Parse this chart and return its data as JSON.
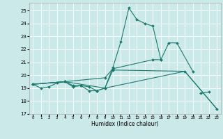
{
  "xlabel": "Humidex (Indice chaleur)",
  "bg_color": "#cce9e9",
  "grid_color": "#ffffff",
  "line_color": "#1a7a6e",
  "xlim": [
    -0.5,
    23.5
  ],
  "ylim": [
    17,
    25.6
  ],
  "yticks": [
    17,
    18,
    19,
    20,
    21,
    22,
    23,
    24,
    25
  ],
  "xticks": [
    0,
    1,
    2,
    3,
    4,
    5,
    6,
    7,
    8,
    9,
    10,
    11,
    12,
    13,
    14,
    15,
    16,
    17,
    18,
    19,
    20,
    21,
    22,
    23
  ],
  "lines": [
    {
      "x": [
        0,
        1,
        2,
        3,
        4,
        5,
        6,
        7,
        8,
        9,
        10,
        11,
        12,
        13,
        14,
        15,
        16,
        17,
        18,
        19,
        20,
        21,
        22,
        23
      ],
      "y": [
        19.3,
        19.0,
        19.1,
        19.4,
        19.5,
        19.1,
        19.2,
        18.8,
        18.8,
        19.0,
        20.6,
        22.6,
        25.2,
        24.3,
        24.0,
        23.8,
        21.2,
        null,
        null,
        null,
        null,
        18.6,
        18.7,
        null
      ],
      "marker": true
    },
    {
      "x": [
        0,
        4,
        9,
        10,
        15,
        16,
        17,
        18,
        20
      ],
      "y": [
        19.3,
        19.5,
        19.8,
        20.5,
        21.2,
        21.2,
        22.5,
        22.5,
        20.3
      ],
      "marker": true
    },
    {
      "x": [
        0,
        4,
        9,
        19,
        23
      ],
      "y": [
        19.3,
        19.5,
        19.0,
        20.3,
        17.4
      ],
      "marker": false
    },
    {
      "x": [
        0,
        4,
        5,
        6,
        7,
        8,
        9,
        10,
        19,
        23
      ],
      "y": [
        19.3,
        19.5,
        19.2,
        19.2,
        19.1,
        18.8,
        19.0,
        20.4,
        20.3,
        17.4
      ],
      "marker": true
    }
  ]
}
